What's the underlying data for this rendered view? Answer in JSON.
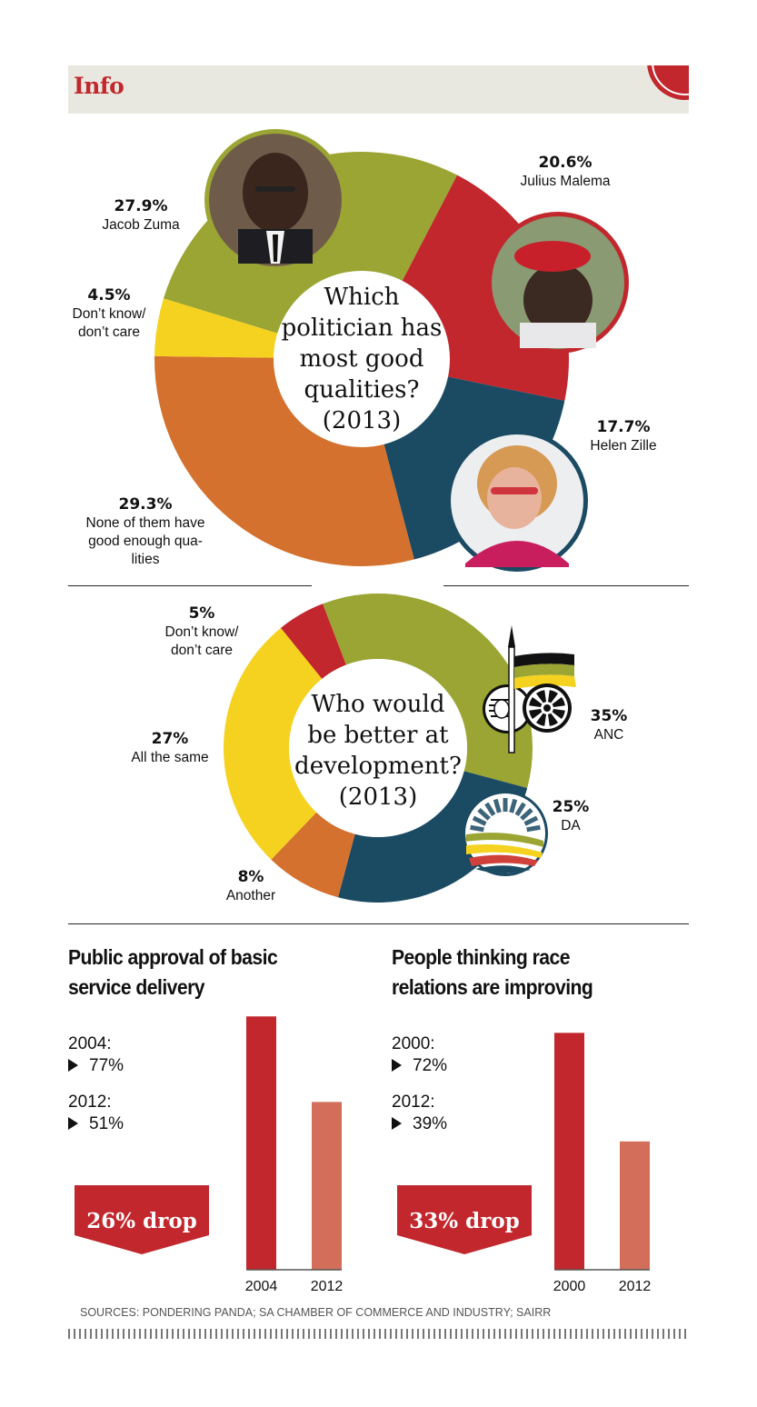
{
  "header": {
    "title": "Info"
  },
  "chart_data": [
    {
      "type": "pie",
      "variant": "donut",
      "title": "Which politician has most good qualities? (2013)",
      "title_lines": [
        "Which",
        "politician has",
        "most good",
        "qualities?",
        "(2013)"
      ],
      "unit": "%",
      "slices": [
        {
          "key": "zuma",
          "label": "Jacob Zuma",
          "label_lines": [
            "Jacob Zuma"
          ],
          "value": 27.9,
          "display": "27.9%",
          "color": "#9aa533",
          "photo": "Jacob Zuma portrait"
        },
        {
          "key": "malema",
          "label": "Julius Malema",
          "label_lines": [
            "Julius Malema"
          ],
          "value": 20.6,
          "display": "20.6%",
          "color": "#c1272d",
          "photo": "Julius Malema portrait"
        },
        {
          "key": "zille",
          "label": "Helen Zille",
          "label_lines": [
            "Helen Zille"
          ],
          "value": 17.7,
          "display": "17.7%",
          "color": "#1b4a63",
          "photo": "Helen Zille portrait"
        },
        {
          "key": "none",
          "label": "None of them have good enough qualities",
          "label_lines": [
            "None of them have",
            "good enough qua-",
            "lities"
          ],
          "value": 29.3,
          "display": "29.3%",
          "color": "#d4712e"
        },
        {
          "key": "dontknow",
          "label": "Don't know/ don't care",
          "label_lines": [
            "Don’t know/",
            "don’t care"
          ],
          "value": 4.5,
          "display": "4.5%",
          "color": "#f5d21f"
        }
      ]
    },
    {
      "type": "pie",
      "variant": "donut",
      "title": "Who would be better at development? (2013)",
      "title_lines": [
        "Who would",
        "be better at",
        "development?",
        "(2013)"
      ],
      "unit": "%",
      "slices": [
        {
          "key": "anc",
          "label": "ANC",
          "label_lines": [
            "ANC"
          ],
          "value": 35,
          "display": "35%",
          "color": "#9aa533",
          "logo": "ANC logo"
        },
        {
          "key": "da",
          "label": "DA",
          "label_lines": [
            "DA"
          ],
          "value": 25,
          "display": "25%",
          "color": "#1b4a63",
          "logo": "DA logo"
        },
        {
          "key": "another",
          "label": "Another",
          "label_lines": [
            "Another"
          ],
          "value": 8,
          "display": "8%",
          "color": "#d4712e"
        },
        {
          "key": "same",
          "label": "All the same",
          "label_lines": [
            "All the same"
          ],
          "value": 27,
          "display": "27%",
          "color": "#f5d21f"
        },
        {
          "key": "dontknow",
          "label": "Don't know/ don't care",
          "label_lines": [
            "Don’t know/",
            "don’t care"
          ],
          "value": 5,
          "display": "5%",
          "color": "#c1272d"
        }
      ]
    },
    {
      "type": "bar",
      "title": "Public approval of basic service delivery",
      "title_lines": [
        "Public approval of basic",
        "service delivery"
      ],
      "categories": [
        "2004",
        "2012"
      ],
      "values": [
        77,
        51
      ],
      "value_labels": [
        "77%",
        "51%"
      ],
      "year_labels": [
        "2004:",
        "2012:"
      ],
      "colors": [
        "#c1272d",
        "#d36e5a"
      ],
      "callout": "26% drop",
      "ylim": [
        0,
        100
      ],
      "xlabel": "",
      "ylabel": ""
    },
    {
      "type": "bar",
      "title": "People thinking race relations are improving",
      "title_lines": [
        "People thinking race",
        "relations are improving"
      ],
      "categories": [
        "2000",
        "2012"
      ],
      "values": [
        72,
        39
      ],
      "value_labels": [
        "72%",
        "39%"
      ],
      "year_labels": [
        "2000:",
        "2012:"
      ],
      "colors": [
        "#c1272d",
        "#d36e5a"
      ],
      "callout": "33% drop",
      "ylim": [
        0,
        100
      ],
      "xlabel": "",
      "ylabel": ""
    }
  ],
  "footer": {
    "sources": "SOURCES: PONDERING PANDA; SA CHAMBER OF COMMERCE AND INDUSTRY; SAIRR"
  }
}
